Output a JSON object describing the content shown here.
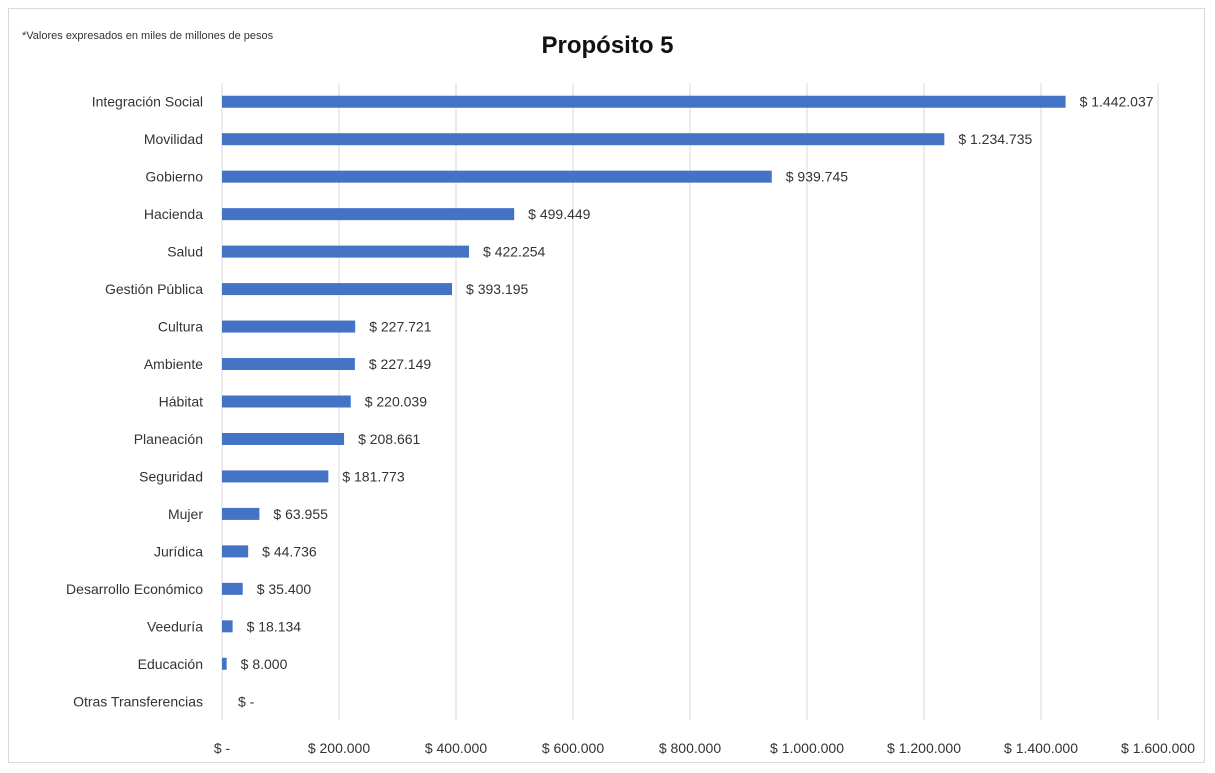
{
  "note": "*Valores expresados en miles de millones de pesos",
  "chart_data": {
    "type": "bar",
    "orientation": "horizontal",
    "title": "Propósito 5",
    "xlabel": "",
    "ylabel": "",
    "xlim": [
      0,
      1600000
    ],
    "grid": "vertical",
    "legend": "none",
    "bar_color": "#4472c4",
    "categories": [
      "Integración Social",
      "Movilidad",
      "Gobierno",
      "Hacienda",
      "Salud",
      "Gestión Pública",
      "Cultura",
      "Ambiente",
      "Hábitat",
      "Planeación",
      "Seguridad",
      "Mujer",
      "Jurídica",
      "Desarrollo Económico",
      "Veeduría",
      "Educación",
      "Otras Transferencias"
    ],
    "values": [
      1442037,
      1234735,
      939745,
      499449,
      422254,
      393195,
      227721,
      227149,
      220039,
      208661,
      181773,
      63955,
      44736,
      35400,
      18134,
      8000,
      0
    ],
    "data_labels": [
      "$ 1.442.037",
      "$ 1.234.735",
      "$ 939.745",
      "$ 499.449",
      "$ 422.254",
      "$ 393.195",
      "$ 227.721",
      "$ 227.149",
      "$ 220.039",
      "$ 208.661",
      "$ 181.773",
      "$ 63.955",
      "$ 44.736",
      "$ 35.400",
      "$ 18.134",
      "$ 8.000",
      "$ -"
    ],
    "ticks": [
      0,
      200000,
      400000,
      600000,
      800000,
      1000000,
      1200000,
      1400000,
      1600000
    ],
    "tick_labels": [
      "$ -",
      "$ 200.000",
      "$ 400.000",
      "$ 600.000",
      "$ 800.000",
      "$ 1.000.000",
      "$ 1.200.000",
      "$ 1.400.000",
      "$ 1.600.000"
    ]
  }
}
